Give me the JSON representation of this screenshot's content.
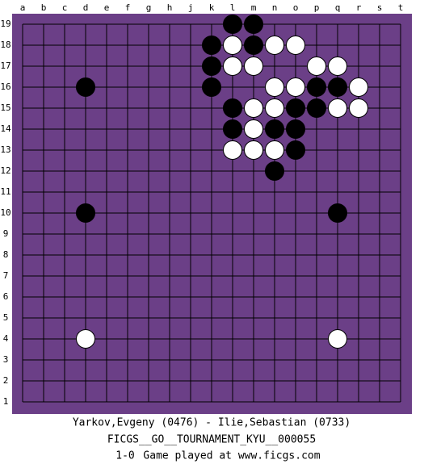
{
  "board": {
    "columns": [
      "a",
      "b",
      "c",
      "d",
      "e",
      "f",
      "g",
      "h",
      "j",
      "k",
      "l",
      "m",
      "n",
      "o",
      "p",
      "q",
      "r",
      "s",
      "t"
    ],
    "rows": [
      "19",
      "18",
      "17",
      "16",
      "15",
      "14",
      "13",
      "12",
      "11",
      "10",
      "9",
      "8",
      "7",
      "6",
      "5",
      "4",
      "3",
      "2",
      "1"
    ],
    "stones": [
      {
        "color": "black",
        "col": "l",
        "row": "19"
      },
      {
        "color": "black",
        "col": "m",
        "row": "19"
      },
      {
        "color": "black",
        "col": "k",
        "row": "18"
      },
      {
        "color": "white",
        "col": "l",
        "row": "18"
      },
      {
        "color": "black",
        "col": "m",
        "row": "18"
      },
      {
        "color": "white",
        "col": "n",
        "row": "18"
      },
      {
        "color": "white",
        "col": "o",
        "row": "18"
      },
      {
        "color": "black",
        "col": "k",
        "row": "17"
      },
      {
        "color": "white",
        "col": "l",
        "row": "17"
      },
      {
        "color": "white",
        "col": "m",
        "row": "17"
      },
      {
        "color": "white",
        "col": "p",
        "row": "17"
      },
      {
        "color": "white",
        "col": "q",
        "row": "17"
      },
      {
        "color": "black",
        "col": "d",
        "row": "16"
      },
      {
        "color": "black",
        "col": "k",
        "row": "16"
      },
      {
        "color": "white",
        "col": "n",
        "row": "16"
      },
      {
        "color": "white",
        "col": "o",
        "row": "16"
      },
      {
        "color": "black",
        "col": "p",
        "row": "16"
      },
      {
        "color": "black",
        "col": "q",
        "row": "16"
      },
      {
        "color": "white",
        "col": "r",
        "row": "16"
      },
      {
        "color": "black",
        "col": "l",
        "row": "15"
      },
      {
        "color": "white",
        "col": "m",
        "row": "15"
      },
      {
        "color": "white",
        "col": "n",
        "row": "15"
      },
      {
        "color": "black",
        "col": "o",
        "row": "15"
      },
      {
        "color": "black",
        "col": "p",
        "row": "15"
      },
      {
        "color": "white",
        "col": "q",
        "row": "15"
      },
      {
        "color": "white",
        "col": "r",
        "row": "15"
      },
      {
        "color": "black",
        "col": "l",
        "row": "14"
      },
      {
        "color": "white",
        "col": "m",
        "row": "14"
      },
      {
        "color": "black",
        "col": "n",
        "row": "14"
      },
      {
        "color": "black",
        "col": "o",
        "row": "14"
      },
      {
        "color": "white",
        "col": "l",
        "row": "13"
      },
      {
        "color": "white",
        "col": "m",
        "row": "13"
      },
      {
        "color": "white",
        "col": "n",
        "row": "13"
      },
      {
        "color": "black",
        "col": "o",
        "row": "13"
      },
      {
        "color": "black",
        "col": "n",
        "row": "12"
      },
      {
        "color": "black",
        "col": "d",
        "row": "10"
      },
      {
        "color": "black",
        "col": "q",
        "row": "10"
      },
      {
        "color": "white",
        "col": "d",
        "row": "4"
      },
      {
        "color": "white",
        "col": "q",
        "row": "4"
      }
    ]
  },
  "footer": {
    "players": "Yarkov,Evgeny (0476) - Ilie,Sebastian (0733)",
    "event": "FICGS__GO__TOURNAMENT_KYU__000055",
    "result": "1-0",
    "site": "Game played at www.ficgs.com"
  }
}
